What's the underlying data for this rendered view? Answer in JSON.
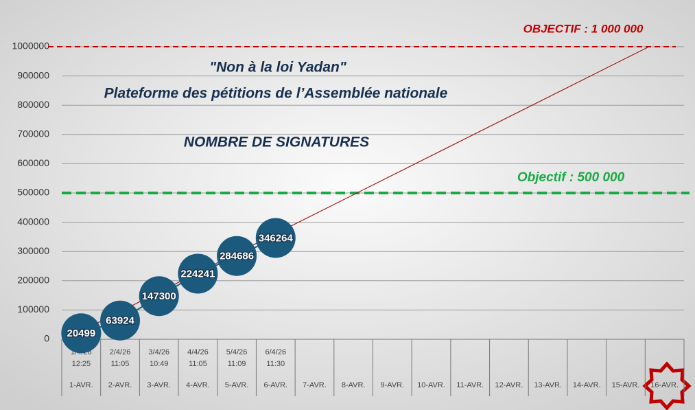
{
  "chart_data": {
    "type": "line",
    "title": "\"Non à la loi Yadan\"",
    "subtitle": "Plateforme des pétitions de l’Assemblée nationale",
    "annotation": "NOMBRE DE SIGNATURES",
    "categories": [
      "1-AVR.",
      "2-AVR.",
      "3-AVR.",
      "4-AVR.",
      "5-AVR.",
      "6-AVR.",
      "7-AVR.",
      "8-AVR.",
      "9-AVR.",
      "10-AVR.",
      "11-AVR.",
      "12-AVR.",
      "13-AVR.",
      "14-AVR.",
      "15-AVR.",
      "16-AVR."
    ],
    "date_labels": [
      "1/4/26",
      "2/4/26",
      "3/4/26",
      "4/4/26",
      "5/4/26",
      "6/4/26",
      null,
      null,
      null,
      null,
      null,
      null,
      null,
      null,
      null,
      null
    ],
    "time_labels": [
      "12:25",
      "11:05",
      "10:49",
      "11:05",
      "11:09",
      "11:30",
      null,
      null,
      null,
      null,
      null,
      null,
      null,
      null,
      null,
      null
    ],
    "series": [
      {
        "name": "Signatures",
        "color": "#1b5a7d",
        "values": [
          20499,
          63924,
          147300,
          224241,
          284686,
          346264,
          null,
          null,
          null,
          null,
          null,
          null,
          null,
          null,
          null,
          null
        ]
      }
    ],
    "trendline": {
      "color": "#a01818",
      "x": [
        0,
        14.6
      ],
      "values": [
        28000,
        1000000
      ]
    },
    "reference_lines": [
      {
        "value": 1000000,
        "label": "OBJECTIF : 1 000 000",
        "color": "#c00000"
      },
      {
        "value": 500000,
        "label": "Objectif : 500 000",
        "color": "#1aaa45"
      }
    ],
    "ylim": [
      0,
      1000000
    ],
    "yticks": [
      0,
      100000,
      200000,
      300000,
      400000,
      500000,
      600000,
      700000,
      800000,
      900000,
      1000000
    ],
    "grid": true
  }
}
